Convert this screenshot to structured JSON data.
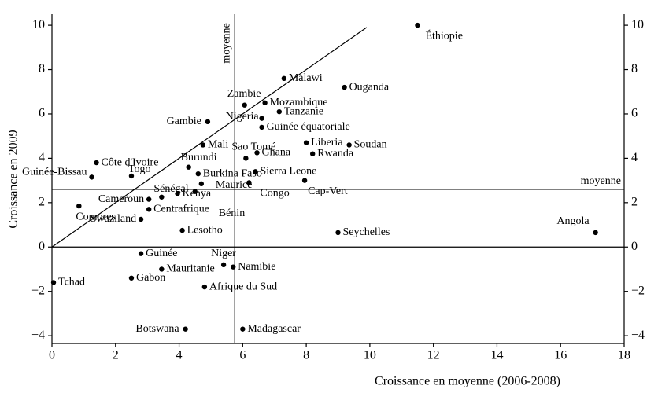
{
  "chart_data": {
    "type": "scatter",
    "x_label": "Croissance en moyenne (2006-2008)",
    "y_label": "Croissance en 2009",
    "xlim": [
      0,
      18
    ],
    "ylim": [
      -4.35,
      10.5
    ],
    "xticks": [
      0,
      2,
      4,
      6,
      8,
      10,
      12,
      14,
      16,
      18
    ],
    "yticks": [
      {
        "value": -4,
        "label": "−4"
      },
      {
        "value": -2,
        "label": "−2"
      },
      0,
      2,
      4,
      6,
      8,
      10
    ],
    "color": "#000000",
    "mean_label": "moyenne",
    "x_mean": 5.75,
    "y_mean": 2.6,
    "labels": [
      "Éthiopie",
      "Malawi",
      "Ouganda",
      "Zambie",
      "Mozambique",
      "Tanzanie",
      "Nigeria",
      "Gambie",
      "Guinée équatoriale",
      "Mali",
      "Sao Tomé",
      "Ghana",
      "Liberia",
      "Soudan",
      "Rwanda",
      "Côte d'Ivoire",
      "Guinée-Bissau",
      "Togo",
      "Burundi",
      "Burkina Faso",
      "Sierra Leone",
      "Maurice",
      "Kenya",
      "Bénin",
      "Congo",
      "Cap-Vert",
      "Sénégal",
      "Cameroun",
      "Centrafrique",
      "Comores",
      "Swaziland",
      "Lesotho",
      "Seychelles",
      "Angola",
      "Guinée",
      "Niger",
      "Namibie",
      "Mauritanie",
      "Tchad",
      "Gabon",
      "Afrique du Sud",
      "Botswana",
      "Madagascar"
    ],
    "x": [
      11.5,
      7.3,
      9.2,
      6.06,
      6.7,
      7.15,
      6.6,
      4.9,
      6.6,
      4.75,
      6.1,
      6.45,
      8.0,
      9.35,
      8.2,
      1.4,
      1.25,
      2.5,
      4.3,
      4.6,
      6.4,
      4.7,
      3.95,
      4.5,
      6.2,
      7.95,
      3.45,
      3.05,
      3.05,
      0.85,
      2.8,
      4.1,
      9.0,
      17.1,
      2.8,
      5.4,
      5.7,
      3.45,
      0.05,
      2.5,
      4.8,
      4.2,
      6.0
    ],
    "series": [
      {
        "values": [
          10,
          7.6,
          7.2,
          6.4,
          6.5,
          6.1,
          5.8,
          5.65,
          5.4,
          4.6,
          4.0,
          4.25,
          4.7,
          4.6,
          4.2,
          3.8,
          3.15,
          3.2,
          3.6,
          3.3,
          3.4,
          2.85,
          2.4,
          2.5,
          2.9,
          3.0,
          2.25,
          2.15,
          1.7,
          1.85,
          1.25,
          0.75,
          0.65,
          0.65,
          -0.3,
          -0.8,
          -0.9,
          -1.0,
          -1.6,
          -1.4,
          -1.8,
          -3.7,
          -3.7
        ]
      }
    ]
  }
}
